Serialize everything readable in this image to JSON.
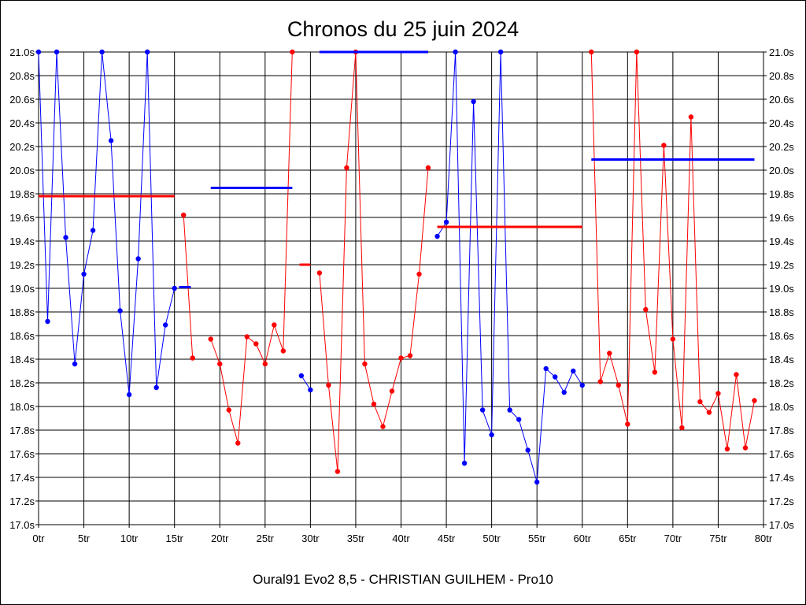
{
  "chart_data": {
    "type": "line",
    "title": "Chronos du 25 juin 2024",
    "subtitle": "Oural91  Evo2  8,5 - CHRISTIAN GUILHEM - Pro10",
    "xlabel": "",
    "ylabel": "",
    "xlim": [
      0,
      80
    ],
    "ylim": [
      17.0,
      21.0
    ],
    "x_ticks": [
      0,
      5,
      10,
      15,
      20,
      25,
      30,
      35,
      40,
      45,
      50,
      55,
      60,
      65,
      70,
      75,
      80
    ],
    "x_tick_labels": [
      "0tr",
      "5tr",
      "10tr",
      "15tr",
      "20tr",
      "25tr",
      "30tr",
      "35tr",
      "40tr",
      "45tr",
      "50tr",
      "55tr",
      "60tr",
      "65tr",
      "70tr",
      "75tr",
      "80tr"
    ],
    "y_ticks": [
      17.0,
      17.2,
      17.4,
      17.6,
      17.8,
      18.0,
      18.2,
      18.4,
      18.6,
      18.8,
      19.0,
      19.2,
      19.4,
      19.6,
      19.8,
      20.0,
      20.2,
      20.4,
      20.6,
      20.8,
      21.0
    ],
    "y_tick_labels": [
      "17.0s",
      "17.2s",
      "17.4s",
      "17.6s",
      "17.8s",
      "18.0s",
      "18.2s",
      "18.4s",
      "18.6s",
      "18.8s",
      "19.0s",
      "19.2s",
      "19.4s",
      "19.6s",
      "19.8s",
      "20.0s",
      "20.2s",
      "20.4s",
      "20.6s",
      "20.8s",
      "21.0s"
    ],
    "grid": true,
    "colors": {
      "blue": "#0000ff",
      "red": "#ff0000",
      "grid": "#000000"
    },
    "series": [
      {
        "color": "#0000ff",
        "points": [
          [
            0,
            21.0
          ],
          [
            1,
            18.72
          ],
          [
            2,
            21.0
          ],
          [
            3,
            19.43
          ],
          [
            4,
            18.36
          ],
          [
            5,
            19.12
          ],
          [
            6,
            19.49
          ],
          [
            7,
            21.0
          ],
          [
            8,
            20.25
          ],
          [
            9,
            18.81
          ],
          [
            10,
            18.1
          ],
          [
            11,
            19.25
          ],
          [
            12,
            21.0
          ],
          [
            13,
            18.16
          ],
          [
            14,
            18.69
          ],
          [
            15,
            19.0
          ]
        ],
        "average": {
          "x": [
            15.5,
            16.8
          ],
          "y": 19.01
        }
      },
      {
        "color": "#ff0000",
        "points": [
          [
            16,
            19.62
          ],
          [
            17,
            18.41
          ]
        ],
        "average": {
          "x": [
            0,
            15
          ],
          "y": 19.78
        }
      },
      {
        "color": "#ff0000",
        "points": [
          [
            19,
            18.57
          ],
          [
            20,
            18.36
          ],
          [
            21,
            17.97
          ],
          [
            22,
            17.69
          ],
          [
            23,
            18.59
          ],
          [
            24,
            18.53
          ],
          [
            25,
            18.36
          ],
          [
            26,
            18.69
          ],
          [
            27,
            18.47
          ],
          [
            28,
            21.0
          ]
        ],
        "average": null
      },
      {
        "color": "#0000ff",
        "points": [
          [
            29,
            18.26
          ],
          [
            30,
            18.14
          ]
        ],
        "average": {
          "x": [
            19,
            28
          ],
          "y": 19.85
        }
      },
      {
        "color": "#ff0000",
        "points": [
          [
            31,
            19.13
          ],
          [
            32,
            18.18
          ],
          [
            33,
            17.45
          ],
          [
            34,
            20.02
          ],
          [
            35,
            21.0
          ],
          [
            36,
            18.36
          ],
          [
            37,
            18.02
          ],
          [
            38,
            17.83
          ],
          [
            39,
            18.13
          ],
          [
            40,
            18.41
          ],
          [
            41,
            18.43
          ],
          [
            42,
            19.12
          ],
          [
            43,
            20.02
          ]
        ],
        "average": {
          "x": [
            28.8,
            30
          ],
          "y": 19.2
        }
      },
      {
        "color": "#0000ff",
        "points": [
          [
            44,
            19.44
          ],
          [
            45,
            19.56
          ],
          [
            46,
            21.0
          ],
          [
            47,
            17.52
          ],
          [
            48,
            20.58
          ],
          [
            49,
            17.97
          ],
          [
            50,
            17.76
          ],
          [
            51,
            21.0
          ],
          [
            52,
            17.97
          ],
          [
            53,
            17.89
          ],
          [
            54,
            17.63
          ],
          [
            55,
            17.36
          ],
          [
            56,
            18.32
          ],
          [
            57,
            18.25
          ],
          [
            58,
            18.12
          ],
          [
            59,
            18.3
          ],
          [
            60,
            18.18
          ]
        ],
        "average": {
          "x": [
            31,
            43
          ],
          "y": 21.0
        }
      },
      {
        "color": "#ff0000",
        "points": [
          [
            61,
            21.0
          ],
          [
            62,
            18.21
          ],
          [
            63,
            18.45
          ],
          [
            64,
            18.18
          ],
          [
            65,
            17.85
          ],
          [
            66,
            21.0
          ],
          [
            67,
            18.82
          ],
          [
            68,
            18.29
          ],
          [
            69,
            20.21
          ],
          [
            70,
            18.57
          ],
          [
            71,
            17.82
          ],
          [
            72,
            20.45
          ],
          [
            73,
            18.04
          ],
          [
            74,
            17.95
          ],
          [
            75,
            18.11
          ],
          [
            76,
            17.64
          ],
          [
            77,
            18.27
          ],
          [
            78,
            17.65
          ],
          [
            79,
            18.05
          ]
        ],
        "average": {
          "x": [
            44,
            60
          ],
          "y": 19.52
        }
      },
      {
        "color": "#0000ff",
        "points": [],
        "average": {
          "x": [
            61,
            79
          ],
          "y": 20.09
        }
      }
    ]
  }
}
